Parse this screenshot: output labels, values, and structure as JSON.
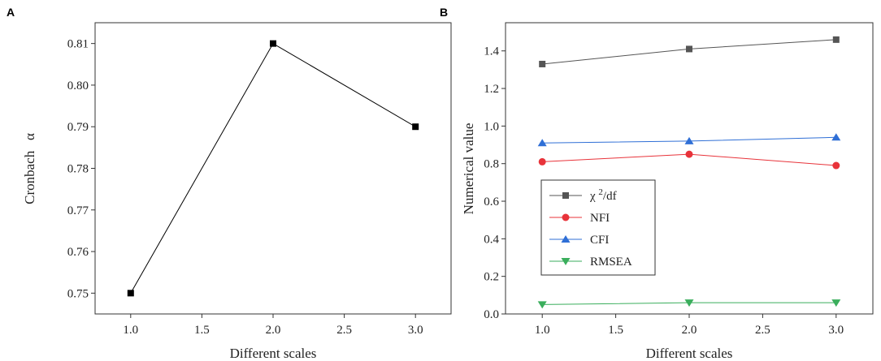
{
  "chart_data": [
    {
      "panel": "A",
      "type": "line",
      "title": "",
      "xlabel": "Different scales",
      "ylabel": "Cronbach   α",
      "x_ticks": [
        "1.0",
        "1.5",
        "2.0",
        "2.5",
        "3.0"
      ],
      "y_ticks": [
        "0.75",
        "0.76",
        "0.77",
        "0.78",
        "0.79",
        "0.80",
        "0.81"
      ],
      "xlim": [
        0.75,
        3.25
      ],
      "ylim": [
        0.745,
        0.815
      ],
      "series": [
        {
          "name": "Cronbach α",
          "color": "#000000",
          "marker": "square",
          "x": [
            1.0,
            2.0,
            3.0
          ],
          "values": [
            0.75,
            0.81,
            0.79
          ]
        }
      ],
      "legend": null
    },
    {
      "panel": "B",
      "type": "line",
      "title": "",
      "xlabel": "Different scales",
      "ylabel": "Numerical value",
      "x_ticks": [
        "1.0",
        "1.5",
        "2.0",
        "2.5",
        "3.0"
      ],
      "y_ticks": [
        "0.0",
        "0.2",
        "0.4",
        "0.6",
        "0.8",
        "1.0",
        "1.2",
        "1.4"
      ],
      "xlim": [
        0.75,
        3.25
      ],
      "ylim": [
        0.0,
        1.55
      ],
      "series": [
        {
          "name": "χ²/df",
          "name_base": "χ ",
          "name_sup": "2",
          "name_tail": "/df",
          "color": "#555555",
          "marker": "square",
          "x": [
            1.0,
            2.0,
            3.0
          ],
          "values": [
            1.33,
            1.41,
            1.46
          ]
        },
        {
          "name": "NFI",
          "color": "#e8333a",
          "marker": "circle",
          "x": [
            1.0,
            2.0,
            3.0
          ],
          "values": [
            0.81,
            0.85,
            0.79
          ]
        },
        {
          "name": "CFI",
          "color": "#2f6fd6",
          "marker": "triangle-up",
          "x": [
            1.0,
            2.0,
            3.0
          ],
          "values": [
            0.91,
            0.92,
            0.94
          ]
        },
        {
          "name": "RMSEA",
          "color": "#3aae5c",
          "marker": "triangle-down",
          "x": [
            1.0,
            2.0,
            3.0
          ],
          "values": [
            0.05,
            0.06,
            0.06
          ]
        }
      ],
      "legend": "middle-left"
    }
  ]
}
